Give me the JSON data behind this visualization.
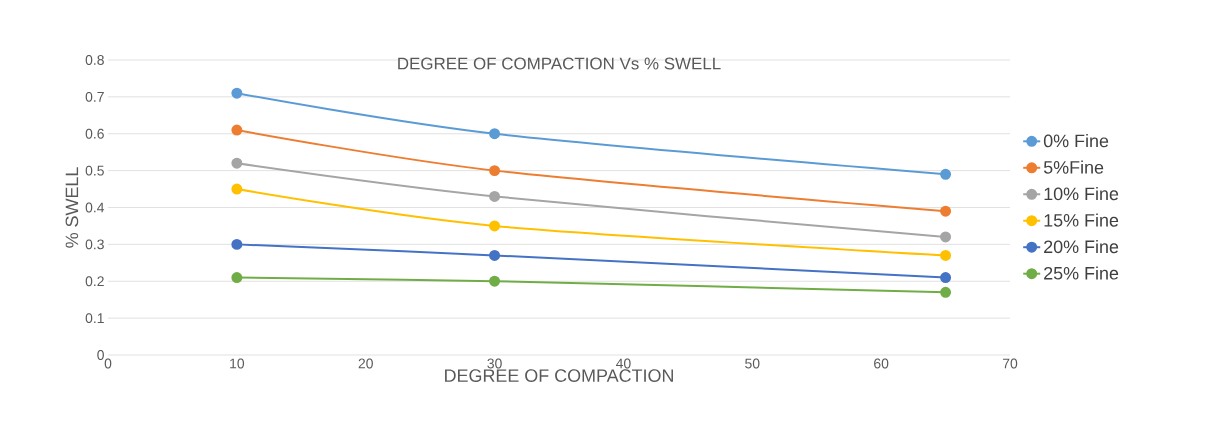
{
  "chart_data": {
    "type": "line",
    "title": "DEGREE OF COMPACTION Vs % SWELL",
    "xlabel": "DEGREE OF COMPACTION",
    "ylabel": "% SWELL",
    "x": [
      10,
      30,
      65
    ],
    "series": [
      {
        "name": "0% Fine",
        "color": "#5b9bd5",
        "values": [
          0.71,
          0.6,
          0.49
        ]
      },
      {
        "name": "5%Fine",
        "color": "#ed7d31",
        "values": [
          0.61,
          0.5,
          0.39
        ]
      },
      {
        "name": "10% Fine",
        "color": "#a5a5a5",
        "values": [
          0.52,
          0.43,
          0.32
        ]
      },
      {
        "name": "15% Fine",
        "color": "#ffc000",
        "values": [
          0.45,
          0.35,
          0.27
        ]
      },
      {
        "name": "20% Fine",
        "color": "#4472c4",
        "values": [
          0.3,
          0.27,
          0.21
        ]
      },
      {
        "name": "25% Fine",
        "color": "#70ad47",
        "values": [
          0.21,
          0.2,
          0.17
        ]
      }
    ],
    "xlim": [
      0,
      70
    ],
    "xticks": [
      0,
      10,
      20,
      30,
      40,
      50,
      60,
      70
    ],
    "ylim": [
      0,
      0.8
    ],
    "yticks": [
      0,
      0.1,
      0.2,
      0.3,
      0.4,
      0.5,
      0.6,
      0.7,
      0.8
    ],
    "grid": "y",
    "legend": "right",
    "marker": "circle",
    "line_style": "solid"
  }
}
